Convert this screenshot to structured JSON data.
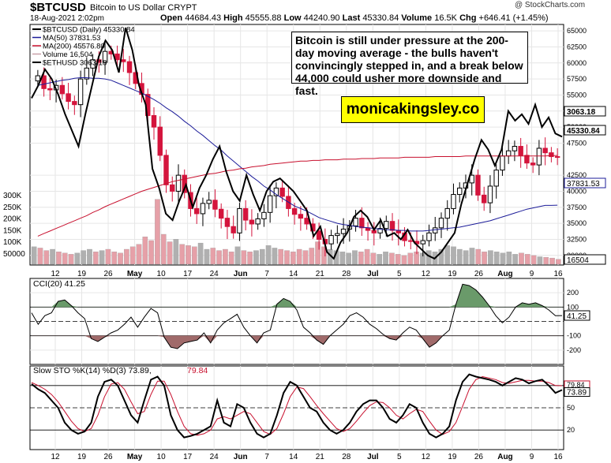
{
  "header": {
    "symbol": "$BTCUSD",
    "name": "Bitcoin to US Dollar  CRYPT",
    "date": "18-Aug-2021 2:02pm",
    "open_label": "Open",
    "open": "44684.43",
    "high_label": "High",
    "high": "45555.88",
    "low_label": "Low",
    "low": "44240.90",
    "last_label": "Last",
    "last": "45330.84",
    "volume_label": "Volume",
    "volume": "16.5K",
    "chg_label": "Chg",
    "chg": "+646.41 (+1.45%)",
    "credit": "@ StockCharts.com"
  },
  "annotation": "Bitcoin is still under pressure at the 200-day moving average - the bulls haven't convincingly stepped in, and a break below 44,000 could usher more downside and fast.",
  "brand": "monicakingsley.co",
  "colors": {
    "up": "#000000",
    "down": "#d4143c",
    "ma50": "#1c1c99",
    "ma200": "#c8102e",
    "cci_fill": "#6a9a6a",
    "cci_neg_fill": "#a06a6a",
    "vol_up": "#b0b0b0",
    "vol_down": "#e6a0a8"
  },
  "chart_data": [
    {
      "type": "candlestick",
      "legend": [
        {
          "label": "$BTCUSD (Daily) 45330.84",
          "color": "#000000"
        },
        {
          "label": "MA(50) 37831.53",
          "color": "#1c1c99"
        },
        {
          "label": "MA(200) 45576.80",
          "color": "#c8102e"
        },
        {
          "label": "Volume 16,504",
          "color": "#c8a0a8"
        },
        {
          "label": "$ETHUSD 3063.18",
          "color": "#000000"
        }
      ],
      "yticks": [
        65000,
        62500,
        60000,
        57500,
        55000,
        52500,
        50000,
        47500,
        42500,
        40000,
        37500,
        35000,
        32500,
        30000
      ],
      "ylim": [
        28500,
        66000
      ],
      "volume_ticks": [
        "300K",
        "250K",
        "200K",
        "150K",
        "100K",
        "50000"
      ],
      "xticks": [
        "12",
        "19",
        "26",
        "May",
        "10",
        "17",
        "24",
        "Jun",
        "7",
        "14",
        "21",
        "28",
        "Jul",
        "5",
        "12",
        "19",
        "26",
        "Aug",
        "9",
        "16"
      ],
      "last_tags": [
        "3063.18",
        "45330.84",
        "37831.53",
        "16504"
      ],
      "close": [
        58000,
        56000,
        55800,
        56500,
        55200,
        54000,
        53500,
        57500,
        59200,
        60500,
        60100,
        61800,
        61400,
        60500,
        60200,
        58500,
        56800,
        55100,
        51800,
        50000,
        45600,
        41000,
        40000,
        42500,
        39800,
        37300,
        36500,
        38100,
        38600,
        37200,
        35800,
        34500,
        33500,
        37300,
        35500,
        34900,
        35700,
        36700,
        39300,
        40500,
        39200,
        37300,
        36400,
        35800,
        34900,
        33800,
        32500,
        31800,
        33100,
        33400,
        34100,
        34600,
        35800,
        34300,
        33900,
        33500,
        34200,
        35300,
        33900,
        33500,
        32300,
        32200,
        31800,
        32300,
        33500,
        34300,
        35800,
        37300,
        39500,
        40500,
        41300,
        42500,
        39400,
        38200,
        40800,
        43300,
        45500,
        46300,
        47000,
        45600,
        44400,
        44100,
        46700,
        46000,
        45400,
        45330
      ],
      "ma50": [
        56500,
        56700,
        56900,
        57100,
        57300,
        57400,
        57600,
        57700,
        57700,
        57600,
        57600,
        57500,
        57300,
        56900,
        56500,
        56100,
        55700,
        55300,
        54800,
        54300,
        53700,
        53000,
        52400,
        51700,
        50900,
        50200,
        49400,
        48700,
        47900,
        47100,
        46400,
        45500,
        44700,
        43900,
        43100,
        42300,
        41600,
        40800,
        40200,
        39500,
        38900,
        38300,
        37700,
        37300,
        36900,
        36400,
        35900,
        35600,
        35300,
        35000,
        34800,
        34700,
        34500,
        34400,
        34300,
        34200,
        34100,
        34000,
        34000,
        33900,
        33900,
        33800,
        33800,
        33800,
        33900,
        34000,
        34100,
        34200,
        34300,
        34400,
        34600,
        34800,
        35000,
        35200,
        35400,
        35700,
        36000,
        36300,
        36600,
        36900,
        37200,
        37400,
        37600,
        37800,
        37800,
        37831
      ],
      "ma200": [
        33000,
        33400,
        33800,
        34200,
        34600,
        35000,
        35400,
        35800,
        36200,
        36700,
        37100,
        37600,
        38000,
        38400,
        38800,
        39200,
        39600,
        40000,
        40300,
        40600,
        40900,
        41200,
        41500,
        41700,
        41900,
        42100,
        42300,
        42500,
        42700,
        42800,
        43000,
        43200,
        43300,
        43500,
        43600,
        43800,
        43900,
        44000,
        44200,
        44300,
        44400,
        44500,
        44600,
        44700,
        44700,
        44800,
        44800,
        44900,
        44900,
        44900,
        45000,
        45000,
        45000,
        45100,
        45100,
        45100,
        45200,
        45200,
        45200,
        45200,
        45300,
        45300,
        45300,
        45300,
        45300,
        45400,
        45400,
        45400,
        45400,
        45400,
        45500,
        45500,
        45500,
        45500,
        45500,
        45500,
        45500,
        45500,
        45500,
        45500,
        45500,
        45500,
        45500,
        45500,
        45550,
        45576
      ],
      "ethusd": [
        54500,
        56500,
        59000,
        57500,
        55000,
        52000,
        49500,
        47000,
        52000,
        56500,
        61000,
        63500,
        62000,
        58500,
        65500,
        62000,
        56500,
        53500,
        43500,
        40500,
        36500,
        35500,
        38500,
        41000,
        37500,
        40500,
        42500,
        45000,
        47000,
        43000,
        40000,
        38500,
        42500,
        39500,
        37000,
        40000,
        41500,
        42000,
        41000,
        40000,
        38500,
        37000,
        33000,
        34500,
        30500,
        29500,
        32000,
        33500,
        36000,
        37000,
        36000,
        34000,
        35500,
        33000,
        33500,
        32500,
        34000,
        32000,
        31000,
        30000,
        29500,
        30500,
        32000,
        33500,
        38000,
        41500,
        45000,
        48000,
        46500,
        44000,
        46500,
        52500,
        51000,
        52000,
        50500,
        53500,
        50000,
        51500,
        49000,
        48500
      ],
      "volume": [
        70,
        65,
        55,
        60,
        50,
        45,
        40,
        45,
        55,
        60,
        50,
        55,
        60,
        50,
        45,
        60,
        70,
        80,
        110,
        95,
        260,
        120,
        90,
        100,
        80,
        75,
        70,
        85,
        60,
        65,
        55,
        60,
        50,
        70,
        55,
        50,
        55,
        60,
        75,
        65,
        60,
        55,
        50,
        60,
        55,
        65,
        90,
        70,
        60,
        55,
        50,
        45,
        55,
        50,
        60,
        45,
        40,
        50,
        45,
        40,
        35,
        45,
        50,
        45,
        55,
        50,
        60,
        75,
        70,
        60,
        55,
        65,
        60,
        50,
        55,
        50,
        45,
        50,
        40,
        45,
        40,
        35,
        30,
        28,
        25,
        20
      ]
    },
    {
      "type": "line",
      "title": "CCI(20) 41.25",
      "yticks": [
        200,
        100,
        -100,
        -200
      ],
      "ylim": [
        -300,
        300
      ],
      "last_tag": "41.25",
      "values": [
        60,
        -20,
        40,
        60,
        140,
        150,
        110,
        60,
        20,
        -120,
        -140,
        -110,
        -80,
        -60,
        -20,
        30,
        -40,
        30,
        90,
        60,
        -110,
        -180,
        -190,
        -150,
        -140,
        -130,
        -80,
        -150,
        -60,
        -10,
        20,
        50,
        -40,
        -100,
        -150,
        -80,
        -60,
        120,
        160,
        140,
        80,
        -40,
        -80,
        -130,
        -160,
        -100,
        -60,
        -20,
        40,
        60,
        30,
        -20,
        -50,
        -90,
        -120,
        -130,
        -80,
        -40,
        -60,
        -120,
        -180,
        -150,
        -100,
        -60,
        120,
        260,
        250,
        220,
        170,
        110,
        40,
        -10,
        30,
        100,
        130,
        120,
        130,
        110,
        80,
        40,
        41
      ]
    },
    {
      "type": "line",
      "title": "Slow STO %K(14) %D(3) 73.89, 79.84",
      "series": [
        {
          "name": "%K",
          "values": [
            82,
            75,
            70,
            60,
            50,
            30,
            20,
            15,
            18,
            30,
            65,
            85,
            88,
            80,
            60,
            40,
            30,
            60,
            88,
            92,
            80,
            40,
            20,
            10,
            12,
            15,
            20,
            25,
            60,
            30,
            25,
            55,
            50,
            30,
            15,
            10,
            15,
            40,
            70,
            85,
            80,
            65,
            50,
            45,
            30,
            20,
            15,
            20,
            30,
            45,
            55,
            60,
            60,
            50,
            35,
            30,
            40,
            55,
            50,
            30,
            15,
            10,
            15,
            25,
            60,
            85,
            95,
            92,
            90,
            88,
            85,
            80,
            85,
            90,
            88,
            83,
            86,
            88,
            80,
            70,
            74
          ]
        },
        {
          "name": "%D",
          "values": [
            84,
            80,
            75,
            68,
            58,
            45,
            32,
            22,
            18,
            22,
            40,
            65,
            82,
            84,
            75,
            58,
            42,
            45,
            68,
            86,
            86,
            68,
            45,
            25,
            15,
            13,
            15,
            20,
            35,
            38,
            35,
            40,
            45,
            42,
            30,
            18,
            14,
            22,
            42,
            65,
            78,
            76,
            65,
            53,
            42,
            32,
            22,
            18,
            22,
            32,
            43,
            53,
            58,
            57,
            50,
            40,
            35,
            42,
            48,
            45,
            32,
            20,
            14,
            18,
            30,
            52,
            75,
            88,
            92,
            90,
            88,
            84,
            83,
            85,
            87,
            87,
            86,
            86,
            84,
            80,
            79.84
          ]
        }
      ],
      "yticks": [
        80,
        50,
        20
      ],
      "ylim": [
        0,
        100
      ],
      "last_tags": [
        "79.84",
        "73.89"
      ]
    }
  ],
  "xticks_bottom": [
    "12",
    "19",
    "26",
    "May",
    "10",
    "17",
    "24",
    "Jun",
    "7",
    "14",
    "21",
    "28",
    "Jul",
    "5",
    "12",
    "19",
    "26",
    "Aug",
    "9",
    "16"
  ]
}
